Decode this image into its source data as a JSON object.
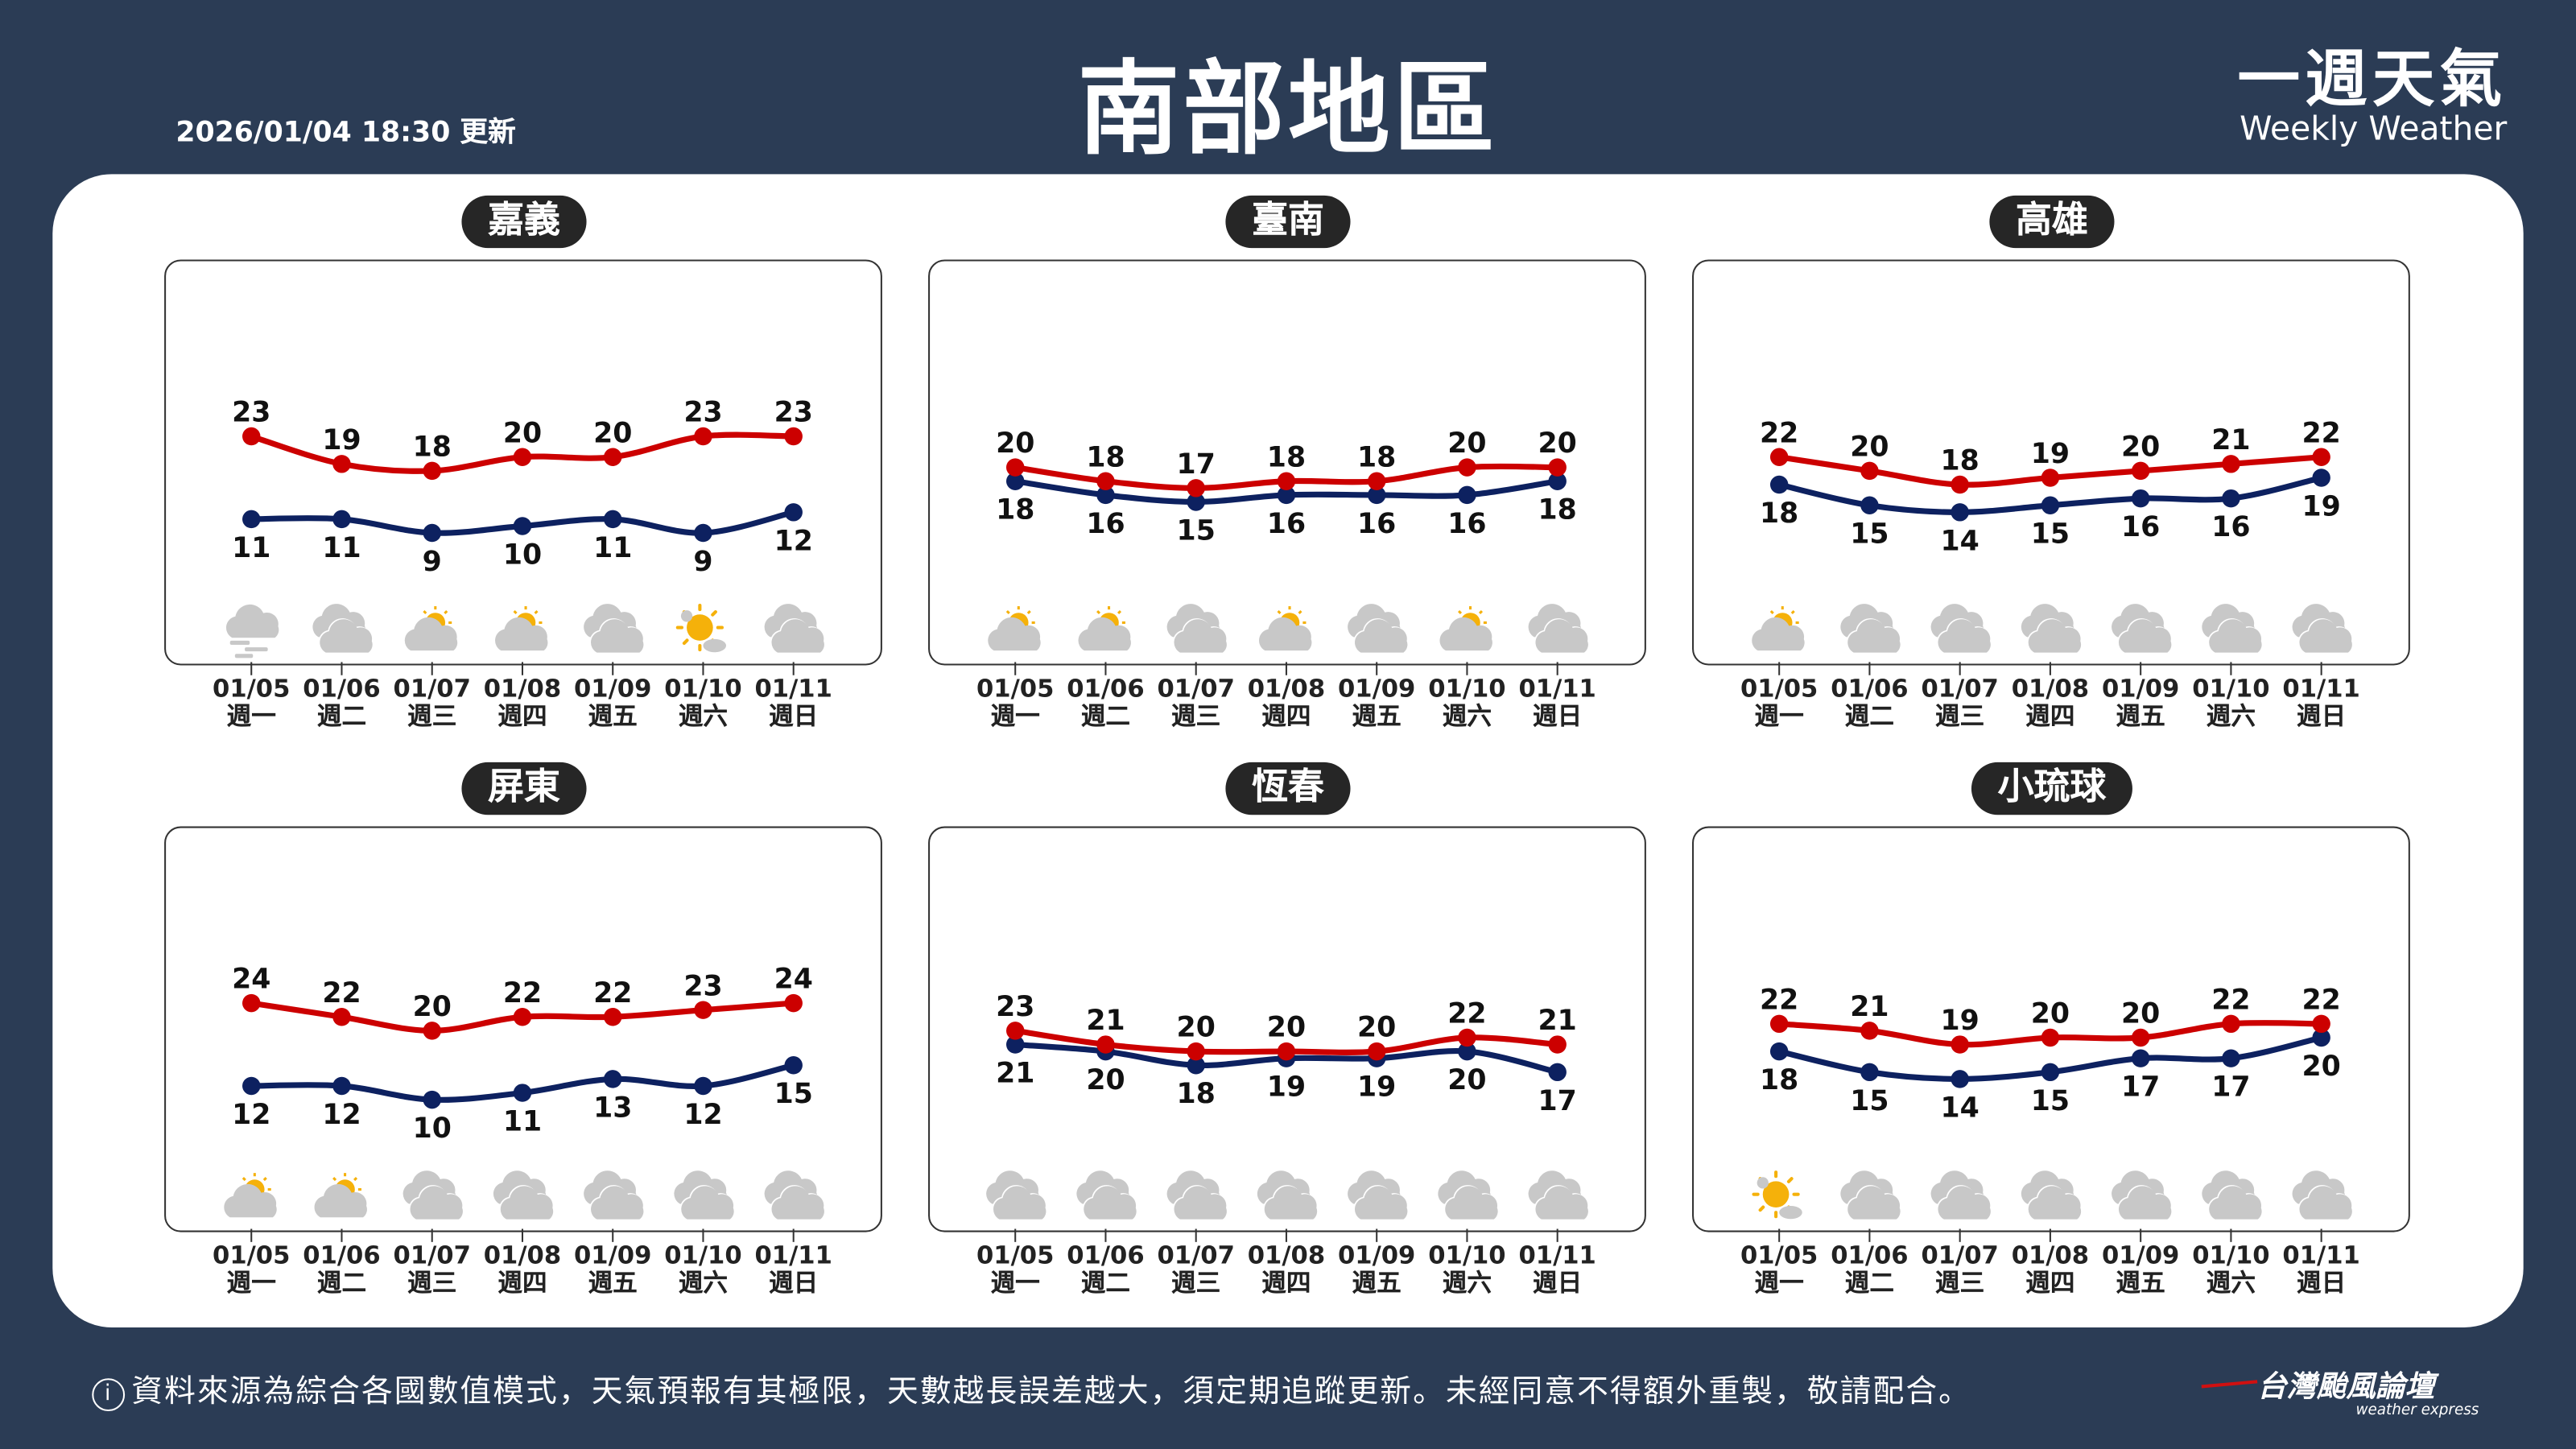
{
  "header": {
    "updated": "2026/01/04 18:30 更新",
    "title": "南部地區",
    "brand_zh": "一週天氣",
    "brand_en": "Weekly Weather"
  },
  "colors": {
    "high": "#cc0000",
    "low": "#0d2160",
    "background": "#2b3c55",
    "sun": "#f5b10a",
    "cloud": "#c8c8c8"
  },
  "dates": [
    "01/05",
    "01/06",
    "01/07",
    "01/08",
    "01/09",
    "01/10",
    "01/11"
  ],
  "weekdays": [
    "週一",
    "週二",
    "週三",
    "週四",
    "週五",
    "週六",
    "週日"
  ],
  "regions": [
    {
      "name": "嘉義",
      "high": [
        23,
        19,
        18,
        20,
        20,
        23,
        23
      ],
      "low": [
        11,
        11,
        9,
        10,
        11,
        9,
        12
      ],
      "icons": [
        "fog",
        "cloudy",
        "partly-cloudy",
        "partly-cloudy",
        "cloudy",
        "sunny",
        "cloudy"
      ]
    },
    {
      "name": "臺南",
      "high": [
        20,
        18,
        17,
        18,
        18,
        20,
        20
      ],
      "low": [
        18,
        16,
        15,
        16,
        16,
        16,
        18
      ],
      "icons": [
        "partly-cloudy",
        "partly-cloudy",
        "cloudy",
        "partly-cloudy",
        "cloudy",
        "partly-cloudy",
        "cloudy"
      ]
    },
    {
      "name": "高雄",
      "high": [
        22,
        20,
        18,
        19,
        20,
        21,
        22
      ],
      "low": [
        18,
        15,
        14,
        15,
        16,
        16,
        19
      ],
      "icons": [
        "partly-cloudy",
        "cloudy",
        "cloudy",
        "cloudy",
        "cloudy",
        "cloudy",
        "cloudy"
      ]
    },
    {
      "name": "屏東",
      "high": [
        24,
        22,
        20,
        22,
        22,
        23,
        24
      ],
      "low": [
        12,
        12,
        10,
        11,
        13,
        12,
        15
      ],
      "icons": [
        "partly-cloudy",
        "partly-cloudy",
        "cloudy",
        "cloudy",
        "cloudy",
        "cloudy",
        "cloudy"
      ]
    },
    {
      "name": "恆春",
      "high": [
        23,
        21,
        20,
        20,
        20,
        22,
        21
      ],
      "low": [
        21,
        20,
        18,
        19,
        19,
        20,
        17
      ],
      "icons": [
        "cloudy",
        "cloudy",
        "cloudy",
        "cloudy",
        "cloudy",
        "cloudy",
        "cloudy"
      ]
    },
    {
      "name": "小琉球",
      "high": [
        22,
        21,
        19,
        20,
        20,
        22,
        22
      ],
      "low": [
        18,
        15,
        14,
        15,
        17,
        17,
        20
      ],
      "icons": [
        "sunny",
        "cloudy",
        "cloudy",
        "cloudy",
        "cloudy",
        "cloudy",
        "cloudy"
      ]
    }
  ],
  "footer": {
    "info_icon": "info-icon",
    "disclaimer": "資料來源為綜合各國數值模式，天氣預報有其極限，天數越長誤差越大，須定期追蹤更新。未經同意不得額外重製，敬請配合。",
    "logo_zh": "台灣颱風論壇",
    "logo_en": "weather express"
  }
}
